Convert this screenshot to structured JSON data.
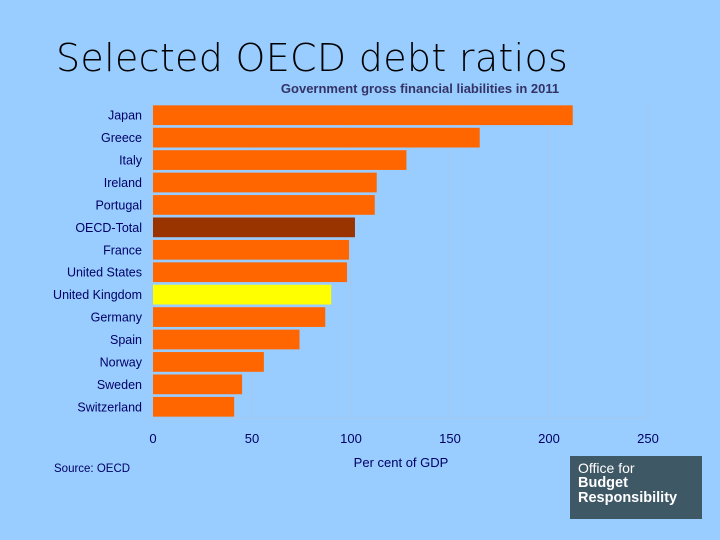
{
  "slide": {
    "title": "Selected OECD debt ratios"
  },
  "source": "Source: OECD",
  "logo": {
    "line1": "Office for",
    "line2": "Budget",
    "line3": "Responsibility"
  },
  "chart_data": {
    "type": "bar",
    "orientation": "horizontal",
    "title": "Government gross financial liabilities in 2011",
    "xlabel": "Per cent of GDP",
    "ylabel": "",
    "xlim": [
      0,
      250
    ],
    "ticks": [
      0,
      50,
      100,
      150,
      200,
      250
    ],
    "grid": "vertical",
    "categories": [
      "Japan",
      "Greece",
      "Italy",
      "Ireland",
      "Portugal",
      "OECD-Total",
      "France",
      "United States",
      "United Kingdom",
      "Germany",
      "Spain",
      "Norway",
      "Sweden",
      "Switzerland"
    ],
    "values": [
      212,
      165,
      128,
      113,
      112,
      102,
      99,
      98,
      90,
      87,
      74,
      56,
      45,
      41
    ],
    "colors": {
      "default": "#ff6600",
      "OECD-Total": "#993300",
      "United Kingdom": "#ffff00",
      "grid": "#a8c8ec",
      "plot_background": "#99ccff"
    }
  }
}
